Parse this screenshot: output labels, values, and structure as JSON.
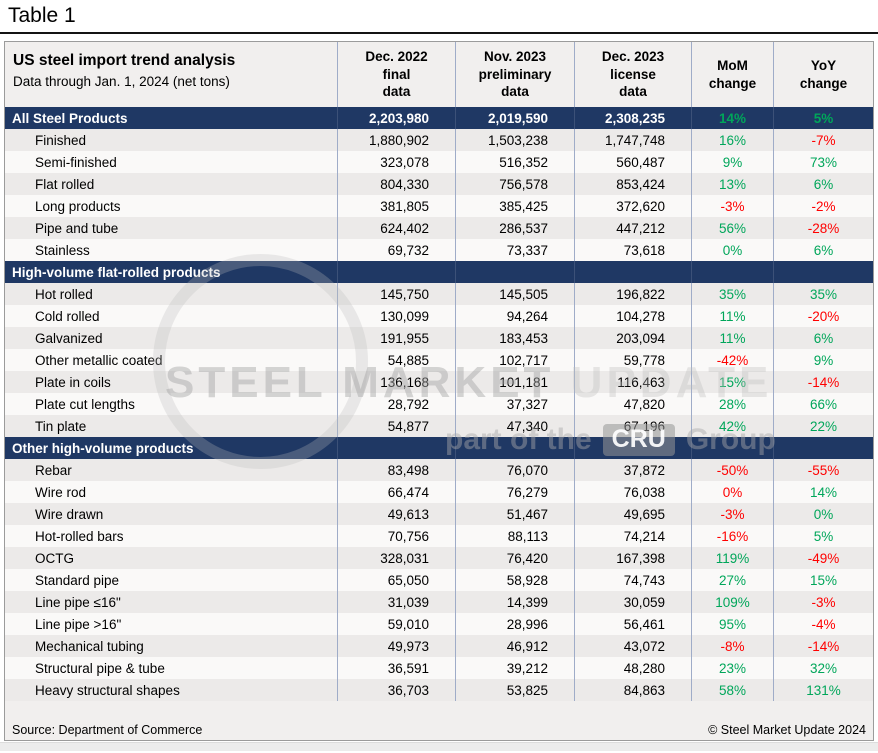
{
  "page_title": "Table 1",
  "colors": {
    "navy": "#1F3864",
    "green": "#00A65A",
    "red": "#FF0000"
  },
  "watermark": {
    "word1": "STEEL MARKET",
    "word2": "UPDATE",
    "sub_prefix": "part of the",
    "sub_box": "CRU",
    "sub_suffix": "Group"
  },
  "chart_data": {
    "type": "table",
    "title": "US steel import trend analysis",
    "subtitle": "Data through Jan. 1, 2024 (net tons)",
    "source": "Source: Department of Commerce",
    "copyright": "© Steel Market Update 2024",
    "columns": [
      {
        "lines": [
          "Dec. 2022",
          "final",
          "data"
        ]
      },
      {
        "lines": [
          "Nov. 2023",
          "preliminary",
          "data"
        ]
      },
      {
        "lines": [
          "Dec. 2023",
          "license",
          "data"
        ]
      },
      {
        "lines": [
          "MoM",
          "change"
        ]
      },
      {
        "lines": [
          "YoY",
          "change"
        ]
      }
    ],
    "sections": [
      {
        "header": {
          "label": "All Steel Products",
          "values": [
            "2,203,980",
            "2,019,590",
            "2,308,235"
          ],
          "mom": "14%",
          "mom_dir": "up",
          "yoy": "5%",
          "yoy_dir": "up"
        },
        "rows": [
          {
            "label": "Finished",
            "values": [
              "1,880,902",
              "1,503,238",
              "1,747,748"
            ],
            "mom": "16%",
            "mom_dir": "up",
            "yoy": "-7%",
            "yoy_dir": "down"
          },
          {
            "label": "Semi-finished",
            "values": [
              "323,078",
              "516,352",
              "560,487"
            ],
            "mom": "9%",
            "mom_dir": "up",
            "yoy": "73%",
            "yoy_dir": "up"
          },
          {
            "label": "Flat rolled",
            "values": [
              "804,330",
              "756,578",
              "853,424"
            ],
            "mom": "13%",
            "mom_dir": "up",
            "yoy": "6%",
            "yoy_dir": "up"
          },
          {
            "label": "Long products",
            "values": [
              "381,805",
              "385,425",
              "372,620"
            ],
            "mom": "-3%",
            "mom_dir": "down",
            "yoy": "-2%",
            "yoy_dir": "down"
          },
          {
            "label": "Pipe and tube",
            "values": [
              "624,402",
              "286,537",
              "447,212"
            ],
            "mom": "56%",
            "mom_dir": "up",
            "yoy": "-28%",
            "yoy_dir": "down"
          },
          {
            "label": "Stainless",
            "values": [
              "69,732",
              "73,337",
              "73,618"
            ],
            "mom": "0%",
            "mom_dir": "up",
            "yoy": "6%",
            "yoy_dir": "up"
          }
        ]
      },
      {
        "header": {
          "label": "High-volume flat-rolled products",
          "values": null,
          "mom": "",
          "mom_dir": "up",
          "yoy": "",
          "yoy_dir": "up"
        },
        "rows": [
          {
            "label": "Hot rolled",
            "values": [
              "145,750",
              "145,505",
              "196,822"
            ],
            "mom": "35%",
            "mom_dir": "up",
            "yoy": "35%",
            "yoy_dir": "up"
          },
          {
            "label": "Cold rolled",
            "values": [
              "130,099",
              "94,264",
              "104,278"
            ],
            "mom": "11%",
            "mom_dir": "up",
            "yoy": "-20%",
            "yoy_dir": "down"
          },
          {
            "label": "Galvanized",
            "values": [
              "191,955",
              "183,453",
              "203,094"
            ],
            "mom": "11%",
            "mom_dir": "up",
            "yoy": "6%",
            "yoy_dir": "up"
          },
          {
            "label": "Other metallic coated",
            "values": [
              "54,885",
              "102,717",
              "59,778"
            ],
            "mom": "-42%",
            "mom_dir": "down",
            "yoy": "9%",
            "yoy_dir": "up"
          },
          {
            "label": "Plate in coils",
            "values": [
              "136,168",
              "101,181",
              "116,463"
            ],
            "mom": "15%",
            "mom_dir": "up",
            "yoy": "-14%",
            "yoy_dir": "down"
          },
          {
            "label": "Plate cut lengths",
            "values": [
              "28,792",
              "37,327",
              "47,820"
            ],
            "mom": "28%",
            "mom_dir": "up",
            "yoy": "66%",
            "yoy_dir": "up"
          },
          {
            "label": "Tin plate",
            "values": [
              "54,877",
              "47,340",
              "67,196"
            ],
            "mom": "42%",
            "mom_dir": "up",
            "yoy": "22%",
            "yoy_dir": "up"
          }
        ]
      },
      {
        "header": {
          "label": "Other high-volume products",
          "values": null,
          "mom": "",
          "mom_dir": "up",
          "yoy": "",
          "yoy_dir": "up"
        },
        "rows": [
          {
            "label": "Rebar",
            "values": [
              "83,498",
              "76,070",
              "37,872"
            ],
            "mom": "-50%",
            "mom_dir": "down",
            "yoy": "-55%",
            "yoy_dir": "down"
          },
          {
            "label": "Wire rod",
            "values": [
              "66,474",
              "76,279",
              "76,038"
            ],
            "mom": "0%",
            "mom_dir": "down",
            "yoy": "14%",
            "yoy_dir": "up"
          },
          {
            "label": "Wire drawn",
            "values": [
              "49,613",
              "51,467",
              "49,695"
            ],
            "mom": "-3%",
            "mom_dir": "down",
            "yoy": "0%",
            "yoy_dir": "up"
          },
          {
            "label": "Hot-rolled bars",
            "values": [
              "70,756",
              "88,113",
              "74,214"
            ],
            "mom": "-16%",
            "mom_dir": "down",
            "yoy": "5%",
            "yoy_dir": "up"
          },
          {
            "label": "OCTG",
            "values": [
              "328,031",
              "76,420",
              "167,398"
            ],
            "mom": "119%",
            "mom_dir": "up",
            "yoy": "-49%",
            "yoy_dir": "down"
          },
          {
            "label": "Standard pipe",
            "values": [
              "65,050",
              "58,928",
              "74,743"
            ],
            "mom": "27%",
            "mom_dir": "up",
            "yoy": "15%",
            "yoy_dir": "up"
          },
          {
            "label": "Line pipe ≤16\"",
            "values": [
              "31,039",
              "14,399",
              "30,059"
            ],
            "mom": "109%",
            "mom_dir": "up",
            "yoy": "-3%",
            "yoy_dir": "down"
          },
          {
            "label": "Line pipe >16\"",
            "values": [
              "59,010",
              "28,996",
              "56,461"
            ],
            "mom": "95%",
            "mom_dir": "up",
            "yoy": "-4%",
            "yoy_dir": "down"
          },
          {
            "label": "Mechanical tubing",
            "values": [
              "49,973",
              "46,912",
              "43,072"
            ],
            "mom": "-8%",
            "mom_dir": "down",
            "yoy": "-14%",
            "yoy_dir": "down"
          },
          {
            "label": "Structural pipe & tube",
            "values": [
              "36,591",
              "39,212",
              "48,280"
            ],
            "mom": "23%",
            "mom_dir": "up",
            "yoy": "32%",
            "yoy_dir": "up"
          },
          {
            "label": "Heavy structural shapes",
            "values": [
              "36,703",
              "53,825",
              "84,863"
            ],
            "mom": "58%",
            "mom_dir": "up",
            "yoy": "131%",
            "yoy_dir": "up"
          }
        ]
      }
    ]
  }
}
